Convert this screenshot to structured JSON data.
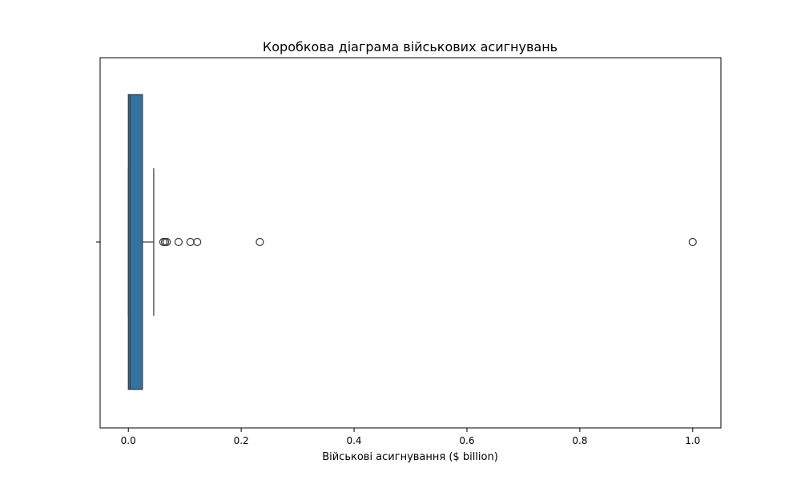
{
  "chart_data": {
    "type": "boxplot",
    "title": "Коробкова діаграма військових асигнувань",
    "xlabel": "Військові асигнування ($ billion)",
    "ylabel": "",
    "xlim": [
      -0.05,
      1.05
    ],
    "x_ticks": [
      0.0,
      0.2,
      0.4,
      0.6,
      0.8,
      1.0
    ],
    "x_tick_labels": [
      "0.0",
      "0.2",
      "0.4",
      "0.6",
      "0.8",
      "1.0"
    ],
    "grid": false,
    "legend": "none",
    "box": {
      "whisker_low": 0.0,
      "q1": 0.0,
      "median": 0.003,
      "q3": 0.025,
      "whisker_high": 0.045
    },
    "outliers": [
      0.062,
      0.065,
      0.068,
      0.089,
      0.11,
      0.122,
      0.233,
      1.0
    ],
    "colors": {
      "box_fill": "#3274a1",
      "box_edge": "#3a3a3a",
      "whisker": "#3a3a3a",
      "outlier_edge": "#3a3a3a",
      "axes": "#000000"
    }
  }
}
